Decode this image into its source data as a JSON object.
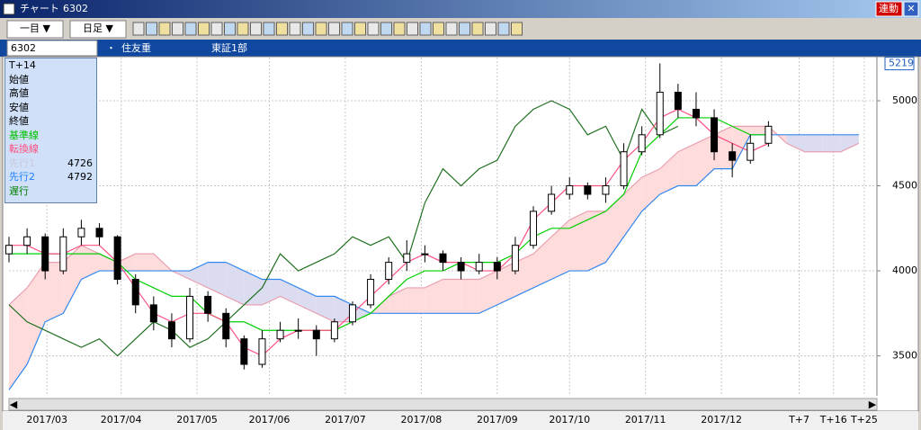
{
  "window": {
    "title": "チャート",
    "code": "6302",
    "link_button": "連動"
  },
  "toolbar": {
    "indicator": "一目 ▼",
    "period": "日足 ▼"
  },
  "info_bar": {
    "code": "6302",
    "dot": "・",
    "name": "住友重",
    "market": "東証1部"
  },
  "info_panel": {
    "rows": [
      {
        "label": "T+14"
      },
      {
        "label": "始値"
      },
      {
        "label": "高値"
      },
      {
        "label": "安値"
      },
      {
        "label": "終値"
      },
      {
        "label": "基準線",
        "color": "#00c000"
      },
      {
        "label": "転換線",
        "color": "#ff5080"
      },
      {
        "label": "先行1",
        "color": "#c8c8dc",
        "value": 4726
      },
      {
        "label": "先行2",
        "color": "#2080ff",
        "value": 4792
      },
      {
        "label": "遅行",
        "color": "#008000"
      }
    ]
  },
  "chart_data": {
    "type": "candlestick",
    "xlim": [
      0,
      240
    ],
    "ylim": [
      3265,
      5254
    ],
    "grid": true,
    "yticks": [
      3500,
      4000,
      4500,
      5000
    ],
    "xticks": [
      {
        "value": 10.5,
        "label": "2017/03"
      },
      {
        "value": 31,
        "label": "2017/04"
      },
      {
        "value": 52,
        "label": "2017/05"
      },
      {
        "value": 72,
        "label": "2017/06"
      },
      {
        "value": 93,
        "label": "2017/07"
      },
      {
        "value": 114,
        "label": "2017/08"
      },
      {
        "value": 135,
        "label": "2017/09"
      },
      {
        "value": 155,
        "label": "2017/10"
      },
      {
        "value": 176,
        "label": "2017/11"
      },
      {
        "value": 197,
        "label": "2017/12"
      },
      {
        "value": 218.5,
        "label": "T+7"
      },
      {
        "value": 228,
        "label": "T+16"
      },
      {
        "value": 236.5,
        "label": "T+25"
      }
    ],
    "current_price": 5219,
    "candles": {
      "x": [
        0,
        5,
        10,
        15,
        20,
        25,
        30,
        35,
        40,
        45,
        50,
        55,
        60,
        65,
        70,
        75,
        80,
        85,
        90,
        95,
        100,
        105,
        110,
        115,
        120,
        125,
        130,
        135,
        140,
        145,
        150,
        155,
        160,
        165,
        170,
        175,
        180,
        185,
        190,
        195,
        200,
        205,
        210
      ],
      "open": [
        4100,
        4150,
        4200,
        4000,
        4200,
        4250,
        4200,
        3950,
        3800,
        3700,
        3600,
        3850,
        3750,
        3600,
        3450,
        3600,
        3650,
        3650,
        3600,
        3700,
        3800,
        3950,
        4050,
        4100,
        4100,
        4050,
        4000,
        4050,
        4000,
        4150,
        4350,
        4450,
        4500,
        4450,
        4500,
        4700,
        4800,
        5050,
        4950,
        4900,
        4700,
        4650,
        4750
      ],
      "high": [
        4200,
        4250,
        4220,
        4250,
        4300,
        4280,
        4210,
        3980,
        3850,
        3750,
        3900,
        3880,
        3780,
        3620,
        3650,
        3700,
        3720,
        3680,
        3720,
        3820,
        3980,
        4080,
        4180,
        4150,
        4120,
        4080,
        4100,
        4080,
        4200,
        4380,
        4500,
        4550,
        4520,
        4550,
        4750,
        4850,
        5220,
        5100,
        5050,
        4950,
        4750,
        4800,
        4880
      ],
      "low": [
        4050,
        4100,
        3950,
        3980,
        4150,
        4150,
        3920,
        3750,
        3650,
        3550,
        3580,
        3700,
        3550,
        3420,
        3430,
        3580,
        3600,
        3500,
        3580,
        3680,
        3780,
        3920,
        4000,
        4050,
        4000,
        3950,
        3980,
        3950,
        3980,
        4130,
        4330,
        4420,
        4420,
        4400,
        4480,
        4680,
        4780,
        4900,
        4850,
        4650,
        4550,
        4630,
        4730
      ],
      "close": [
        4150,
        4200,
        4000,
        4200,
        4250,
        4200,
        3950,
        3800,
        3700,
        3600,
        3850,
        3750,
        3600,
        3450,
        3600,
        3650,
        3650,
        3600,
        3700,
        3800,
        3950,
        4050,
        4100,
        4100,
        4050,
        4000,
        4050,
        4000,
        4150,
        4350,
        4450,
        4500,
        4450,
        4500,
        4700,
        4800,
        5050,
        4950,
        4900,
        4700,
        4650,
        4750,
        4850
      ]
    },
    "x": [
      0,
      5,
      10,
      15,
      20,
      25,
      30,
      35,
      40,
      45,
      50,
      55,
      60,
      65,
      70,
      75,
      80,
      85,
      90,
      95,
      100,
      105,
      110,
      115,
      120,
      125,
      130,
      135,
      140,
      145,
      150,
      155,
      160,
      165,
      170,
      175,
      180,
      185,
      190,
      195,
      200,
      205,
      210,
      215,
      220,
      225,
      230,
      235
    ],
    "series": [
      {
        "name": "転換線",
        "color": "#ff5080",
        "values": [
          4150,
          4150,
          4100,
          4100,
          4150,
          4150,
          4050,
          3900,
          3750,
          3700,
          3750,
          3750,
          3700,
          3550,
          3500,
          3600,
          3650,
          3650,
          3650,
          3750,
          3850,
          3950,
          4050,
          4100,
          4050,
          4050,
          4000,
          4000,
          4100,
          4300,
          4400,
          4500,
          4500,
          4500,
          4650,
          4750,
          4900,
          4950,
          4900,
          4800,
          4750,
          4700,
          4750,
          null,
          null,
          null,
          null,
          null
        ]
      },
      {
        "name": "基準線",
        "color": "#00d000",
        "values": [
          4100,
          4100,
          4100,
          4100,
          4100,
          4100,
          4050,
          3950,
          3900,
          3850,
          3850,
          3750,
          3700,
          3700,
          3650,
          3650,
          3650,
          3650,
          3650,
          3700,
          3750,
          3850,
          3950,
          4000,
          4000,
          4050,
          4050,
          4050,
          4100,
          4200,
          4250,
          4250,
          4300,
          4350,
          4450,
          4700,
          4800,
          4900,
          4900,
          4900,
          4850,
          4800,
          4800,
          null,
          null,
          null,
          null,
          null
        ]
      },
      {
        "name": "先行1",
        "color": "#e8a0b0",
        "values": [
          3800,
          3900,
          4050,
          4050,
          4150,
          4100,
          4050,
          4100,
          4100,
          4000,
          3950,
          3900,
          3850,
          3800,
          3800,
          3850,
          3800,
          3750,
          3700,
          3700,
          3750,
          3850,
          3900,
          3900,
          3950,
          3950,
          3950,
          4000,
          4050,
          4100,
          4200,
          4300,
          4350,
          4350,
          4450,
          4550,
          4600,
          4700,
          4750,
          4800,
          4850,
          4850,
          4850,
          4750,
          4700,
          4700,
          4700,
          4750
        ]
      },
      {
        "name": "先行2",
        "color": "#3388ee",
        "values": [
          3300,
          3450,
          3700,
          3750,
          3950,
          4000,
          4000,
          4000,
          4000,
          4000,
          4000,
          4050,
          4050,
          4000,
          3950,
          3950,
          3900,
          3850,
          3850,
          3800,
          3750,
          3750,
          3750,
          3750,
          3750,
          3750,
          3750,
          3800,
          3850,
          3900,
          3950,
          4000,
          4000,
          4050,
          4200,
          4350,
          4450,
          4500,
          4500,
          4600,
          4600,
          4800,
          4800,
          4800,
          4800,
          4800,
          4800,
          4800
        ]
      },
      {
        "name": "遅行",
        "color": "#207020",
        "values": [
          3800,
          3700,
          3650,
          3600,
          3550,
          3600,
          3500,
          3600,
          3700,
          3650,
          3550,
          3600,
          3700,
          3800,
          3900,
          4100,
          4000,
          4050,
          4100,
          4200,
          4150,
          4200,
          4050,
          4400,
          4600,
          4500,
          4600,
          4650,
          4850,
          4950,
          5000,
          4950,
          4800,
          4850,
          4650,
          4950,
          4800,
          4850,
          null,
          null,
          null,
          null,
          null,
          null,
          null,
          null,
          null,
          null
        ]
      }
    ]
  }
}
